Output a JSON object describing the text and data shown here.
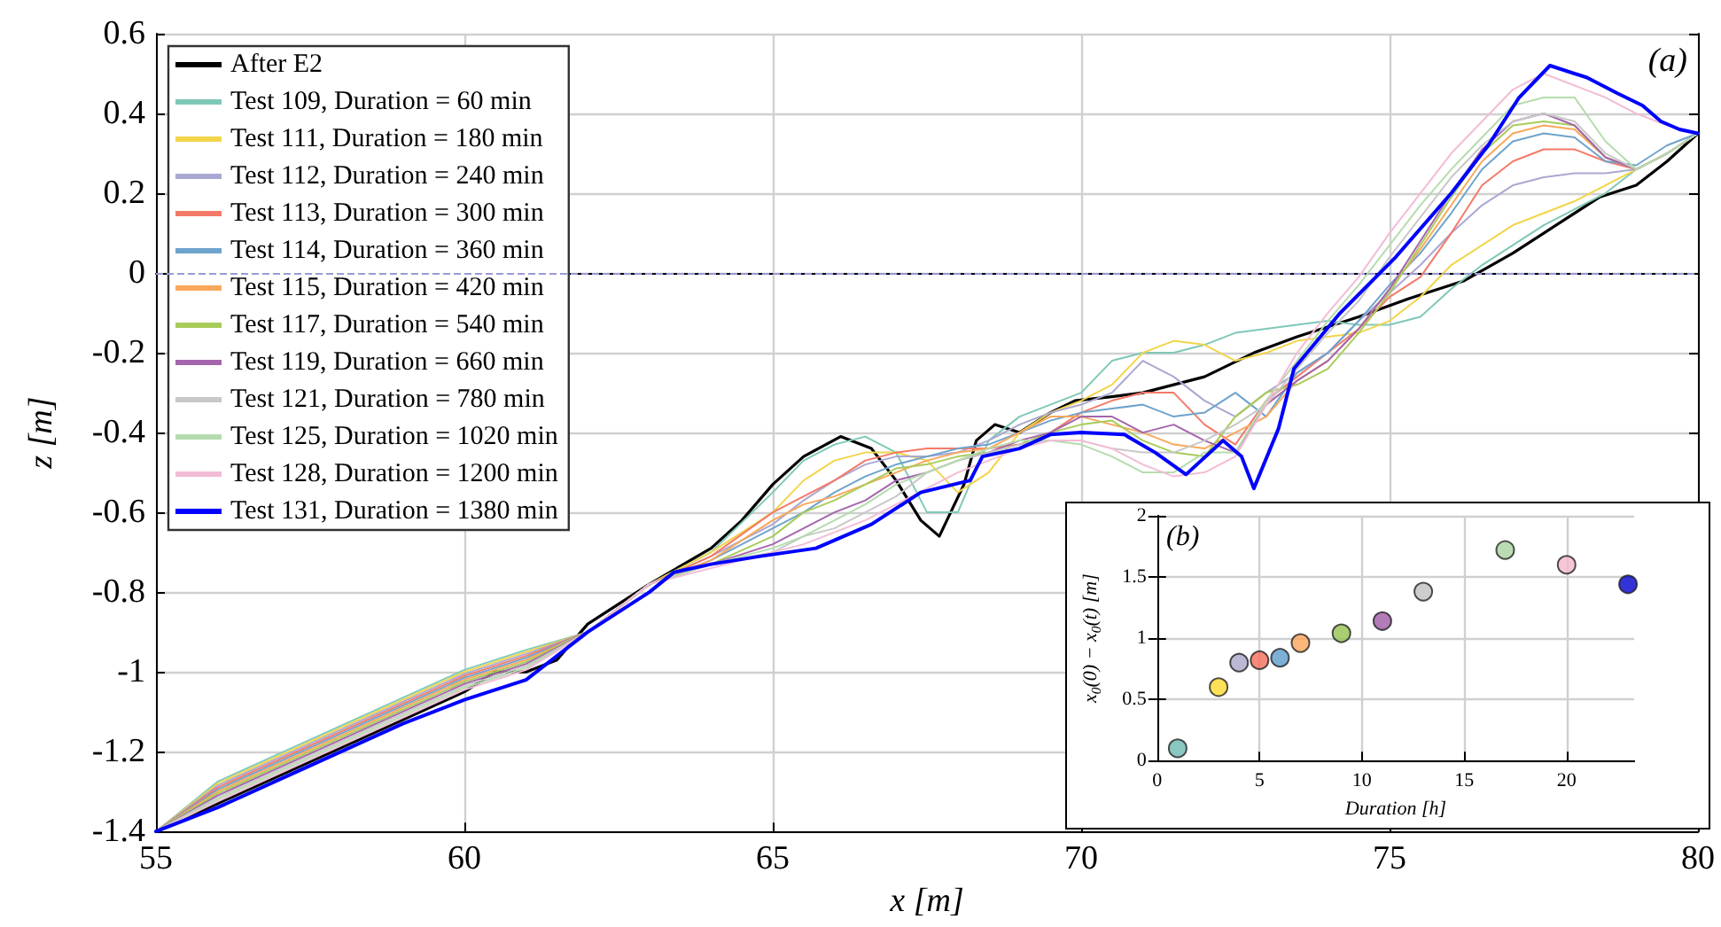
{
  "chart_data": [
    {
      "type": "line",
      "xlabel": "x [m]",
      "ylabel": "z [m]",
      "annotations": [
        "(a)"
      ],
      "xlim": [
        55,
        80
      ],
      "xticks": [
        55,
        60,
        65,
        70,
        75,
        80
      ],
      "ylim": [
        -1.4,
        0.6
      ],
      "yticks": [
        -1.4,
        -1.2,
        -1,
        -0.8,
        -0.6,
        -0.4,
        -0.2,
        0,
        0.2,
        0.4,
        0.6
      ],
      "grid": true,
      "legend": "top left",
      "marker": "none",
      "line_style": "solid",
      "ref_lines": [
        {
          "axis": "y",
          "value": 0,
          "color": "#9a9ad6",
          "line_style": "dashed"
        }
      ],
      "x": [
        55,
        56,
        57,
        58,
        59,
        60,
        61,
        62,
        63,
        64,
        65,
        65.5,
        66,
        66.5,
        67,
        67.5,
        68,
        68.5,
        69,
        69.5,
        70,
        70.5,
        71,
        71.5,
        72,
        72.5,
        73,
        73.5,
        74,
        74.5,
        75,
        75.5,
        76,
        76.5,
        77,
        77.5,
        78,
        78.5,
        79,
        79.5,
        80
      ],
      "series": [
        {
          "name": "After E2",
          "color": "#000000",
          "x": [
            55,
            56,
            57,
            58,
            59,
            60,
            60.5,
            61,
            61.5,
            62,
            63,
            64,
            64.5,
            65,
            65.5,
            66.1,
            66.6,
            67,
            67.4,
            67.7,
            68.1,
            68.3,
            68.6,
            69,
            69.5,
            69.9,
            70.5,
            71,
            72,
            72.8,
            73.5,
            74.5,
            75.3,
            76.2,
            77,
            77.5,
            78.4,
            79,
            79.5,
            80
          ],
          "values": [
            -1.4,
            -1.33,
            -1.26,
            -1.19,
            -1.12,
            -1.05,
            -1.0,
            -1.0,
            -0.97,
            -0.88,
            -0.78,
            -0.69,
            -0.62,
            -0.53,
            -0.46,
            -0.41,
            -0.44,
            -0.52,
            -0.62,
            -0.66,
            -0.53,
            -0.42,
            -0.38,
            -0.4,
            -0.35,
            -0.32,
            -0.31,
            -0.3,
            -0.26,
            -0.2,
            -0.16,
            -0.11,
            -0.065,
            -0.02,
            0.05,
            0.1,
            0.19,
            0.22,
            0.28,
            0.35
          ]
        },
        {
          "name": "Test 109, Duration = 60 min",
          "color": "#7fc8b8",
          "values": [
            -1.4,
            -1.275,
            -1.205,
            -1.135,
            -1.065,
            -0.995,
            -0.945,
            -0.9,
            -0.78,
            -0.7,
            -0.55,
            -0.47,
            -0.43,
            -0.41,
            -0.45,
            -0.6,
            -0.6,
            -0.42,
            -0.36,
            -0.33,
            -0.3,
            -0.22,
            -0.2,
            -0.2,
            -0.18,
            -0.15,
            -0.14,
            -0.13,
            -0.12,
            -0.13,
            -0.13,
            -0.11,
            -0.04,
            0.02,
            0.07,
            0.12,
            0.16,
            0.2,
            0.26,
            0.3,
            0.35
          ]
        },
        {
          "name": "Test 111, Duration = 180 min",
          "color": "#f2d54a",
          "values": [
            -1.4,
            -1.28,
            -1.21,
            -1.14,
            -1.07,
            -1.0,
            -0.95,
            -0.9,
            -0.78,
            -0.7,
            -0.6,
            -0.52,
            -0.47,
            -0.45,
            -0.45,
            -0.47,
            -0.55,
            -0.5,
            -0.4,
            -0.35,
            -0.32,
            -0.28,
            -0.2,
            -0.17,
            -0.18,
            -0.22,
            -0.2,
            -0.17,
            -0.16,
            -0.15,
            -0.12,
            -0.06,
            0.02,
            0.07,
            0.12,
            0.15,
            0.18,
            0.22,
            0.26,
            0.3,
            0.35
          ]
        },
        {
          "name": "Test 112, Duration = 240 min",
          "color": "#aaa8d2",
          "values": [
            -1.4,
            -1.285,
            -1.215,
            -1.145,
            -1.075,
            -1.005,
            -0.955,
            -0.9,
            -0.78,
            -0.71,
            -0.63,
            -0.57,
            -0.52,
            -0.48,
            -0.46,
            -0.46,
            -0.45,
            -0.42,
            -0.38,
            -0.35,
            -0.33,
            -0.3,
            -0.22,
            -0.26,
            -0.32,
            -0.36,
            -0.3,
            -0.25,
            -0.2,
            -0.12,
            -0.05,
            0.02,
            0.1,
            0.17,
            0.22,
            0.24,
            0.25,
            0.25,
            0.26,
            0.3,
            0.35
          ]
        },
        {
          "name": "Test 113, Duration = 300 min",
          "color": "#f47a68",
          "values": [
            -1.4,
            -1.29,
            -1.22,
            -1.15,
            -1.08,
            -1.01,
            -0.96,
            -0.9,
            -0.78,
            -0.71,
            -0.6,
            -0.56,
            -0.52,
            -0.47,
            -0.45,
            -0.44,
            -0.44,
            -0.44,
            -0.43,
            -0.4,
            -0.35,
            -0.32,
            -0.3,
            -0.3,
            -0.38,
            -0.43,
            -0.32,
            -0.26,
            -0.2,
            -0.14,
            -0.06,
            -0.01,
            0.1,
            0.22,
            0.28,
            0.31,
            0.31,
            0.28,
            0.26,
            0.3,
            0.35
          ]
        },
        {
          "name": "Test 114, Duration = 360 min",
          "color": "#6ea3cc",
          "values": [
            -1.4,
            -1.295,
            -1.225,
            -1.155,
            -1.085,
            -1.015,
            -0.965,
            -0.9,
            -0.78,
            -0.72,
            -0.64,
            -0.6,
            -0.55,
            -0.51,
            -0.48,
            -0.46,
            -0.44,
            -0.43,
            -0.4,
            -0.37,
            -0.35,
            -0.34,
            -0.33,
            -0.36,
            -0.35,
            -0.3,
            -0.36,
            -0.25,
            -0.2,
            -0.12,
            -0.03,
            0.05,
            0.15,
            0.26,
            0.33,
            0.35,
            0.34,
            0.28,
            0.27,
            0.32,
            0.35
          ]
        },
        {
          "name": "Test 115, Duration = 420 min",
          "color": "#f9a85c",
          "values": [
            -1.4,
            -1.3,
            -1.23,
            -1.16,
            -1.09,
            -1.02,
            -0.97,
            -0.9,
            -0.78,
            -0.72,
            -0.62,
            -0.58,
            -0.56,
            -0.53,
            -0.5,
            -0.47,
            -0.45,
            -0.44,
            -0.4,
            -0.36,
            -0.36,
            -0.38,
            -0.4,
            -0.43,
            -0.44,
            -0.4,
            -0.36,
            -0.27,
            -0.22,
            -0.14,
            -0.04,
            0.06,
            0.17,
            0.28,
            0.35,
            0.37,
            0.36,
            0.29,
            0.26,
            0.3,
            0.35
          ]
        },
        {
          "name": "Test 117, Duration = 540 min",
          "color": "#a8cc5a",
          "values": [
            -1.4,
            -1.305,
            -1.235,
            -1.165,
            -1.095,
            -1.025,
            -0.975,
            -0.9,
            -0.78,
            -0.73,
            -0.66,
            -0.6,
            -0.57,
            -0.53,
            -0.49,
            -0.48,
            -0.46,
            -0.45,
            -0.43,
            -0.4,
            -0.38,
            -0.37,
            -0.42,
            -0.45,
            -0.46,
            -0.36,
            -0.3,
            -0.28,
            -0.24,
            -0.15,
            -0.05,
            0.07,
            0.19,
            0.3,
            0.37,
            0.38,
            0.37,
            0.29,
            0.26,
            0.3,
            0.35
          ]
        },
        {
          "name": "Test 119, Duration = 660 min",
          "color": "#a566ad",
          "values": [
            -1.4,
            -1.31,
            -1.24,
            -1.17,
            -1.1,
            -1.03,
            -0.98,
            -0.9,
            -0.78,
            -0.73,
            -0.68,
            -0.64,
            -0.6,
            -0.57,
            -0.52,
            -0.5,
            -0.47,
            -0.45,
            -0.42,
            -0.4,
            -0.36,
            -0.36,
            -0.4,
            -0.38,
            -0.42,
            -0.45,
            -0.33,
            -0.27,
            -0.22,
            -0.14,
            -0.04,
            0.08,
            0.2,
            0.31,
            0.38,
            0.4,
            0.37,
            0.29,
            0.26,
            0.3,
            0.35
          ]
        },
        {
          "name": "Test 121, Duration = 780 min",
          "color": "#c8c8c8",
          "values": [
            -1.4,
            -1.315,
            -1.245,
            -1.175,
            -1.105,
            -1.035,
            -0.985,
            -0.9,
            -0.78,
            -0.73,
            -0.7,
            -0.66,
            -0.64,
            -0.6,
            -0.56,
            -0.5,
            -0.47,
            -0.45,
            -0.43,
            -0.42,
            -0.42,
            -0.44,
            -0.45,
            -0.45,
            -0.42,
            -0.38,
            -0.33,
            -0.24,
            -0.15,
            -0.07,
            0.04,
            0.14,
            0.24,
            0.32,
            0.38,
            0.4,
            0.38,
            0.3,
            0.26,
            0.3,
            0.35
          ]
        },
        {
          "name": "Test 125, Duration = 1020 min",
          "color": "#b5dcae",
          "values": [
            -1.4,
            -1.32,
            -1.25,
            -1.18,
            -1.11,
            -1.04,
            -0.99,
            -0.9,
            -0.78,
            -0.73,
            -0.69,
            -0.66,
            -0.62,
            -0.58,
            -0.53,
            -0.5,
            -0.47,
            -0.44,
            -0.42,
            -0.42,
            -0.43,
            -0.46,
            -0.5,
            -0.5,
            -0.45,
            -0.45,
            -0.32,
            -0.22,
            -0.12,
            -0.03,
            0.07,
            0.17,
            0.26,
            0.34,
            0.42,
            0.44,
            0.44,
            0.33,
            0.26,
            0.3,
            0.35
          ]
        },
        {
          "name": "Test 128, Duration = 1200 min",
          "color": "#f3bcd6",
          "values": [
            -1.4,
            -1.325,
            -1.255,
            -1.185,
            -1.115,
            -1.045,
            -0.995,
            -0.9,
            -0.78,
            -0.74,
            -0.7,
            -0.68,
            -0.65,
            -0.62,
            -0.58,
            -0.54,
            -0.5,
            -0.47,
            -0.44,
            -0.42,
            -0.42,
            -0.44,
            -0.48,
            -0.51,
            -0.5,
            -0.46,
            -0.33,
            -0.2,
            -0.1,
            -0.01,
            0.1,
            0.2,
            0.3,
            0.38,
            0.46,
            0.5,
            0.47,
            0.44,
            0.4,
            0.37,
            0.35
          ]
        },
        {
          "name": "Test 131, Duration = 1380 min",
          "color": "#0000ff",
          "x": [
            55,
            56,
            57,
            58,
            59,
            60,
            61,
            62,
            63,
            63.4,
            64,
            64.8,
            65.7,
            66.6,
            67.4,
            68.2,
            68.4,
            69,
            69.5,
            70,
            70.7,
            71.2,
            71.7,
            72.3,
            72.6,
            72.8,
            73.2,
            73.45,
            74.2,
            75.1,
            76,
            76.6,
            77.1,
            77.6,
            78.2,
            78.7,
            79.1,
            79.4,
            79.7,
            80
          ],
          "values": [
            -1.4,
            -1.34,
            -1.27,
            -1.2,
            -1.13,
            -1.07,
            -1.02,
            -0.9,
            -0.8,
            -0.75,
            -0.73,
            -0.71,
            -0.69,
            -0.63,
            -0.55,
            -0.52,
            -0.46,
            -0.44,
            -0.405,
            -0.4,
            -0.405,
            -0.45,
            -0.505,
            -0.42,
            -0.46,
            -0.54,
            -0.39,
            -0.24,
            -0.1,
            0.04,
            0.2,
            0.32,
            0.44,
            0.52,
            0.49,
            0.45,
            0.42,
            0.38,
            0.36,
            0.35
          ]
        }
      ]
    },
    {
      "type": "scatter",
      "xlabel": "Duration [h]",
      "ylabel": "x$_{0}$(0) − x$_{0}$(t) [m]",
      "annotations": [
        "(b)"
      ],
      "xlim": [
        0,
        23.3
      ],
      "xticks": [
        0,
        5,
        10,
        15,
        20
      ],
      "ylim": [
        0,
        2
      ],
      "yticks": [
        0,
        0.5,
        1,
        1.5,
        2
      ],
      "grid": true,
      "marker": "circle",
      "x": [
        1,
        3,
        4,
        5,
        6,
        7,
        9,
        11,
        13,
        17,
        20,
        23
      ],
      "values": [
        0.1,
        0.6,
        0.8,
        0.82,
        0.84,
        0.96,
        1.04,
        1.14,
        1.38,
        1.72,
        1.6,
        1.44
      ],
      "colors": [
        "#6bb9b0",
        "#ffd92f",
        "#a9a6c9",
        "#f46d5a",
        "#5b9cc9",
        "#fda55a",
        "#95c24f",
        "#a05aa6",
        "#c0c0c0",
        "#a9d3a0",
        "#f2b8cc",
        "#0000cc"
      ]
    }
  ]
}
